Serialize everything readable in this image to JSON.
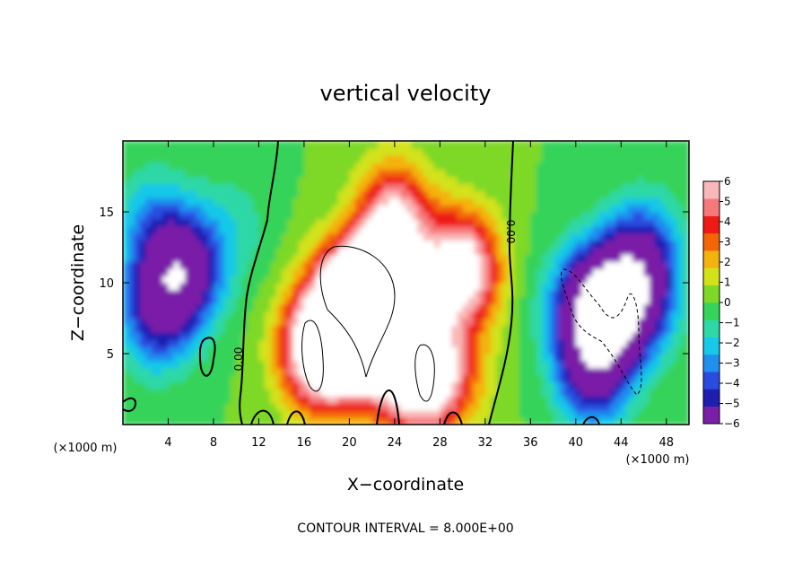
{
  "chart_data": {
    "type": "heatmap",
    "title": "vertical velocity",
    "xlabel": "X−coordinate",
    "ylabel": "Z−coordinate",
    "x_unit_left": "(×1000 m)",
    "x_unit_right": "(×1000 m)",
    "xlim": [
      0,
      50
    ],
    "ylim": [
      0,
      20
    ],
    "x_ticks": [
      4,
      8,
      12,
      16,
      20,
      24,
      28,
      32,
      36,
      40,
      44,
      48
    ],
    "y_ticks": [
      5,
      10,
      15
    ],
    "colorbar": {
      "range": [
        -6,
        6
      ],
      "ticks": [
        "6",
        "5",
        "4",
        "3",
        "2",
        "1",
        "0",
        "−1",
        "−2",
        "−3",
        "−4",
        "−5",
        "−6"
      ],
      "colors": [
        "#7a1fa8",
        "#1e1eb0",
        "#2a4be0",
        "#1f8ff0",
        "#17c8e8",
        "#2ed8a6",
        "#35d35a",
        "#7ed826",
        "#d2e21a",
        "#f4b20e",
        "#f46508",
        "#ee1a14",
        "#f6787a",
        "#f9b8b8"
      ]
    },
    "zero_contour_label": "0.00",
    "contour_note": "CONTOUR INTERVAL = 8.000E+00",
    "features": [
      {
        "x": 22,
        "z": 9,
        "amp": 14
      },
      {
        "x": 24,
        "z": 14.5,
        "amp": 6
      },
      {
        "x": 30,
        "z": 11,
        "amp": 7.5
      },
      {
        "x": 19.5,
        "z": 6,
        "amp": 9
      },
      {
        "x": 26.5,
        "z": 3.5,
        "amp": 9
      },
      {
        "x": 17,
        "z": 4.5,
        "amp": 4
      },
      {
        "x": 5.5,
        "z": 11,
        "amp": -6.5
      },
      {
        "x": 3,
        "z": 8,
        "amp": -5
      },
      {
        "x": 2.5,
        "z": 14,
        "amp": -2.5
      },
      {
        "x": 43,
        "z": 8.5,
        "amp": -12
      },
      {
        "x": 46,
        "z": 12,
        "amp": -4.5
      },
      {
        "x": 41.5,
        "z": 4,
        "amp": -6
      },
      {
        "x": 10,
        "z": 14,
        "amp": -1.2
      }
    ]
  }
}
